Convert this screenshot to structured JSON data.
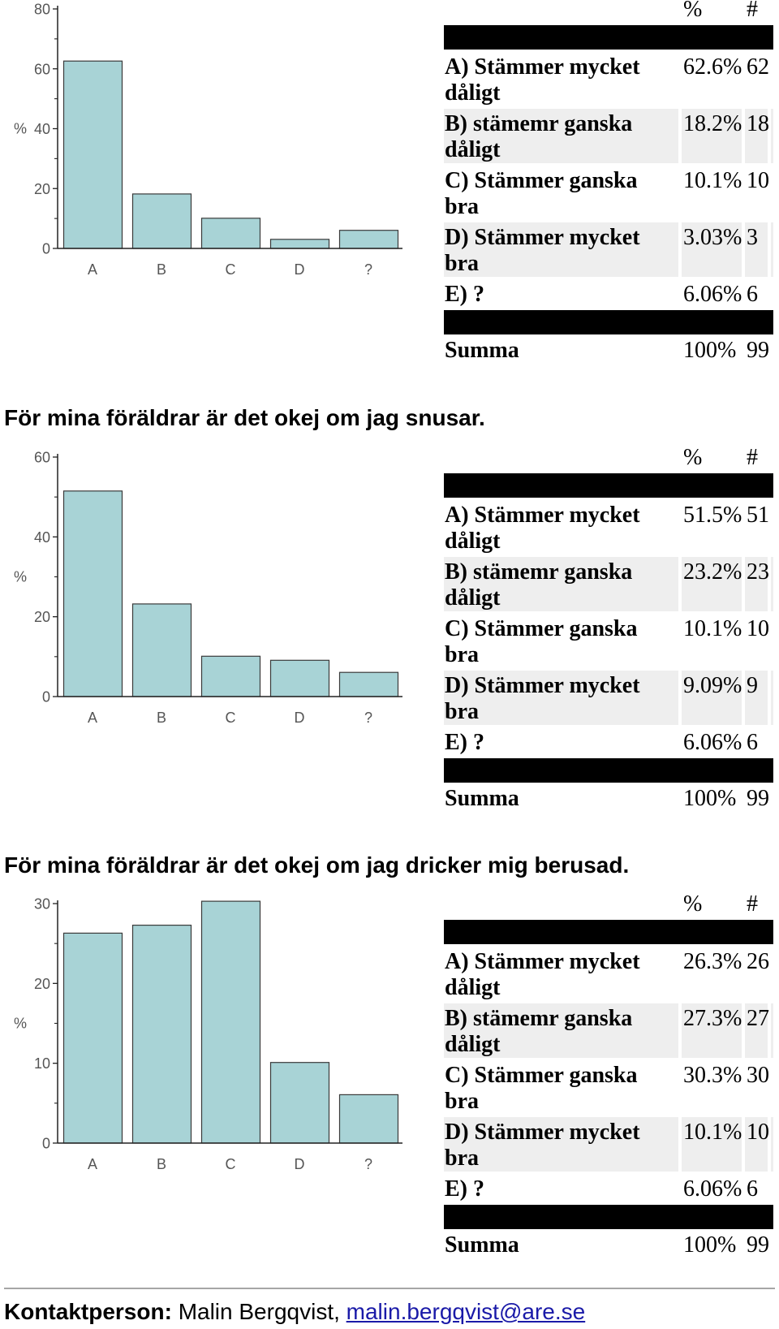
{
  "colors": {
    "bar_fill": "#a8d3d6",
    "bar_stroke": "#3a3a3a",
    "axis": "#222222",
    "tick_text": "#555555",
    "table_band": "#000000",
    "row_alt": "#eeeeee",
    "link": "#1a1aa8",
    "rule": "#a6a6a6"
  },
  "sections": [
    {
      "table": {
        "header": {
          "pct": "%",
          "count": "#"
        },
        "rows": [
          {
            "label": "A) Stämmer mycket dåligt",
            "pct": "62.6%",
            "count": "62"
          },
          {
            "label": "B) stämemr ganska dåligt",
            "pct": "18.2%",
            "count": "18"
          },
          {
            "label": "C) Stämmer ganska bra",
            "pct": "10.1%",
            "count": "10"
          },
          {
            "label": "D) Stämmer mycket bra",
            "pct": "3.03%",
            "count": "3"
          },
          {
            "label": "E) ?",
            "pct": "6.06%",
            "count": "6"
          }
        ],
        "total": {
          "label": "Summa",
          "pct": "100%",
          "count": "99"
        }
      }
    },
    {
      "heading": "För mina föräldrar är det okej om jag snusar.",
      "table": {
        "header": {
          "pct": "%",
          "count": "#"
        },
        "rows": [
          {
            "label": "A) Stämmer mycket dåligt",
            "pct": "51.5%",
            "count": "51"
          },
          {
            "label": "B) stämemr ganska dåligt",
            "pct": "23.2%",
            "count": "23"
          },
          {
            "label": "C) Stämmer ganska bra",
            "pct": "10.1%",
            "count": "10"
          },
          {
            "label": "D) Stämmer mycket bra",
            "pct": "9.09%",
            "count": "9"
          },
          {
            "label": "E) ?",
            "pct": "6.06%",
            "count": "6"
          }
        ],
        "total": {
          "label": "Summa",
          "pct": "100%",
          "count": "99"
        }
      }
    },
    {
      "heading": "För mina föräldrar är det okej om jag dricker mig berusad.",
      "table": {
        "header": {
          "pct": "%",
          "count": "#"
        },
        "rows": [
          {
            "label": "A) Stämmer mycket dåligt",
            "pct": "26.3%",
            "count": "26"
          },
          {
            "label": "B) stämemr ganska dåligt",
            "pct": "27.3%",
            "count": "27"
          },
          {
            "label": "C) Stämmer ganska bra",
            "pct": "30.3%",
            "count": "30"
          },
          {
            "label": "D) Stämmer mycket bra",
            "pct": "10.1%",
            "count": "10"
          },
          {
            "label": "E) ?",
            "pct": "6.06%",
            "count": "6"
          }
        ],
        "total": {
          "label": "Summa",
          "pct": "100%",
          "count": "99"
        }
      }
    }
  ],
  "chart_data": [
    {
      "type": "bar",
      "categories": [
        "A",
        "B",
        "C",
        "D",
        "?"
      ],
      "values": [
        62.6,
        18.2,
        10.1,
        3.03,
        6.06
      ],
      "ylabel": "%",
      "ylim": [
        0,
        80
      ],
      "yticks": [
        0,
        20,
        40,
        60,
        80
      ],
      "grid": false
    },
    {
      "type": "bar",
      "categories": [
        "A",
        "B",
        "C",
        "D",
        "?"
      ],
      "values": [
        51.5,
        23.2,
        10.1,
        9.09,
        6.06
      ],
      "ylabel": "%",
      "ylim": [
        0,
        60
      ],
      "yticks": [
        0,
        20,
        40,
        60
      ],
      "grid": false
    },
    {
      "type": "bar",
      "categories": [
        "A",
        "B",
        "C",
        "D",
        "?"
      ],
      "values": [
        26.3,
        27.3,
        30.3,
        10.1,
        6.06
      ],
      "ylabel": "%",
      "ylim": [
        0,
        30
      ],
      "yticks": [
        0,
        10,
        20,
        30
      ],
      "grid": false
    }
  ],
  "footer": {
    "label": "Kontaktperson:",
    "name": "Malin Bergqvist,",
    "email": "malin.bergqvist@are.se"
  }
}
